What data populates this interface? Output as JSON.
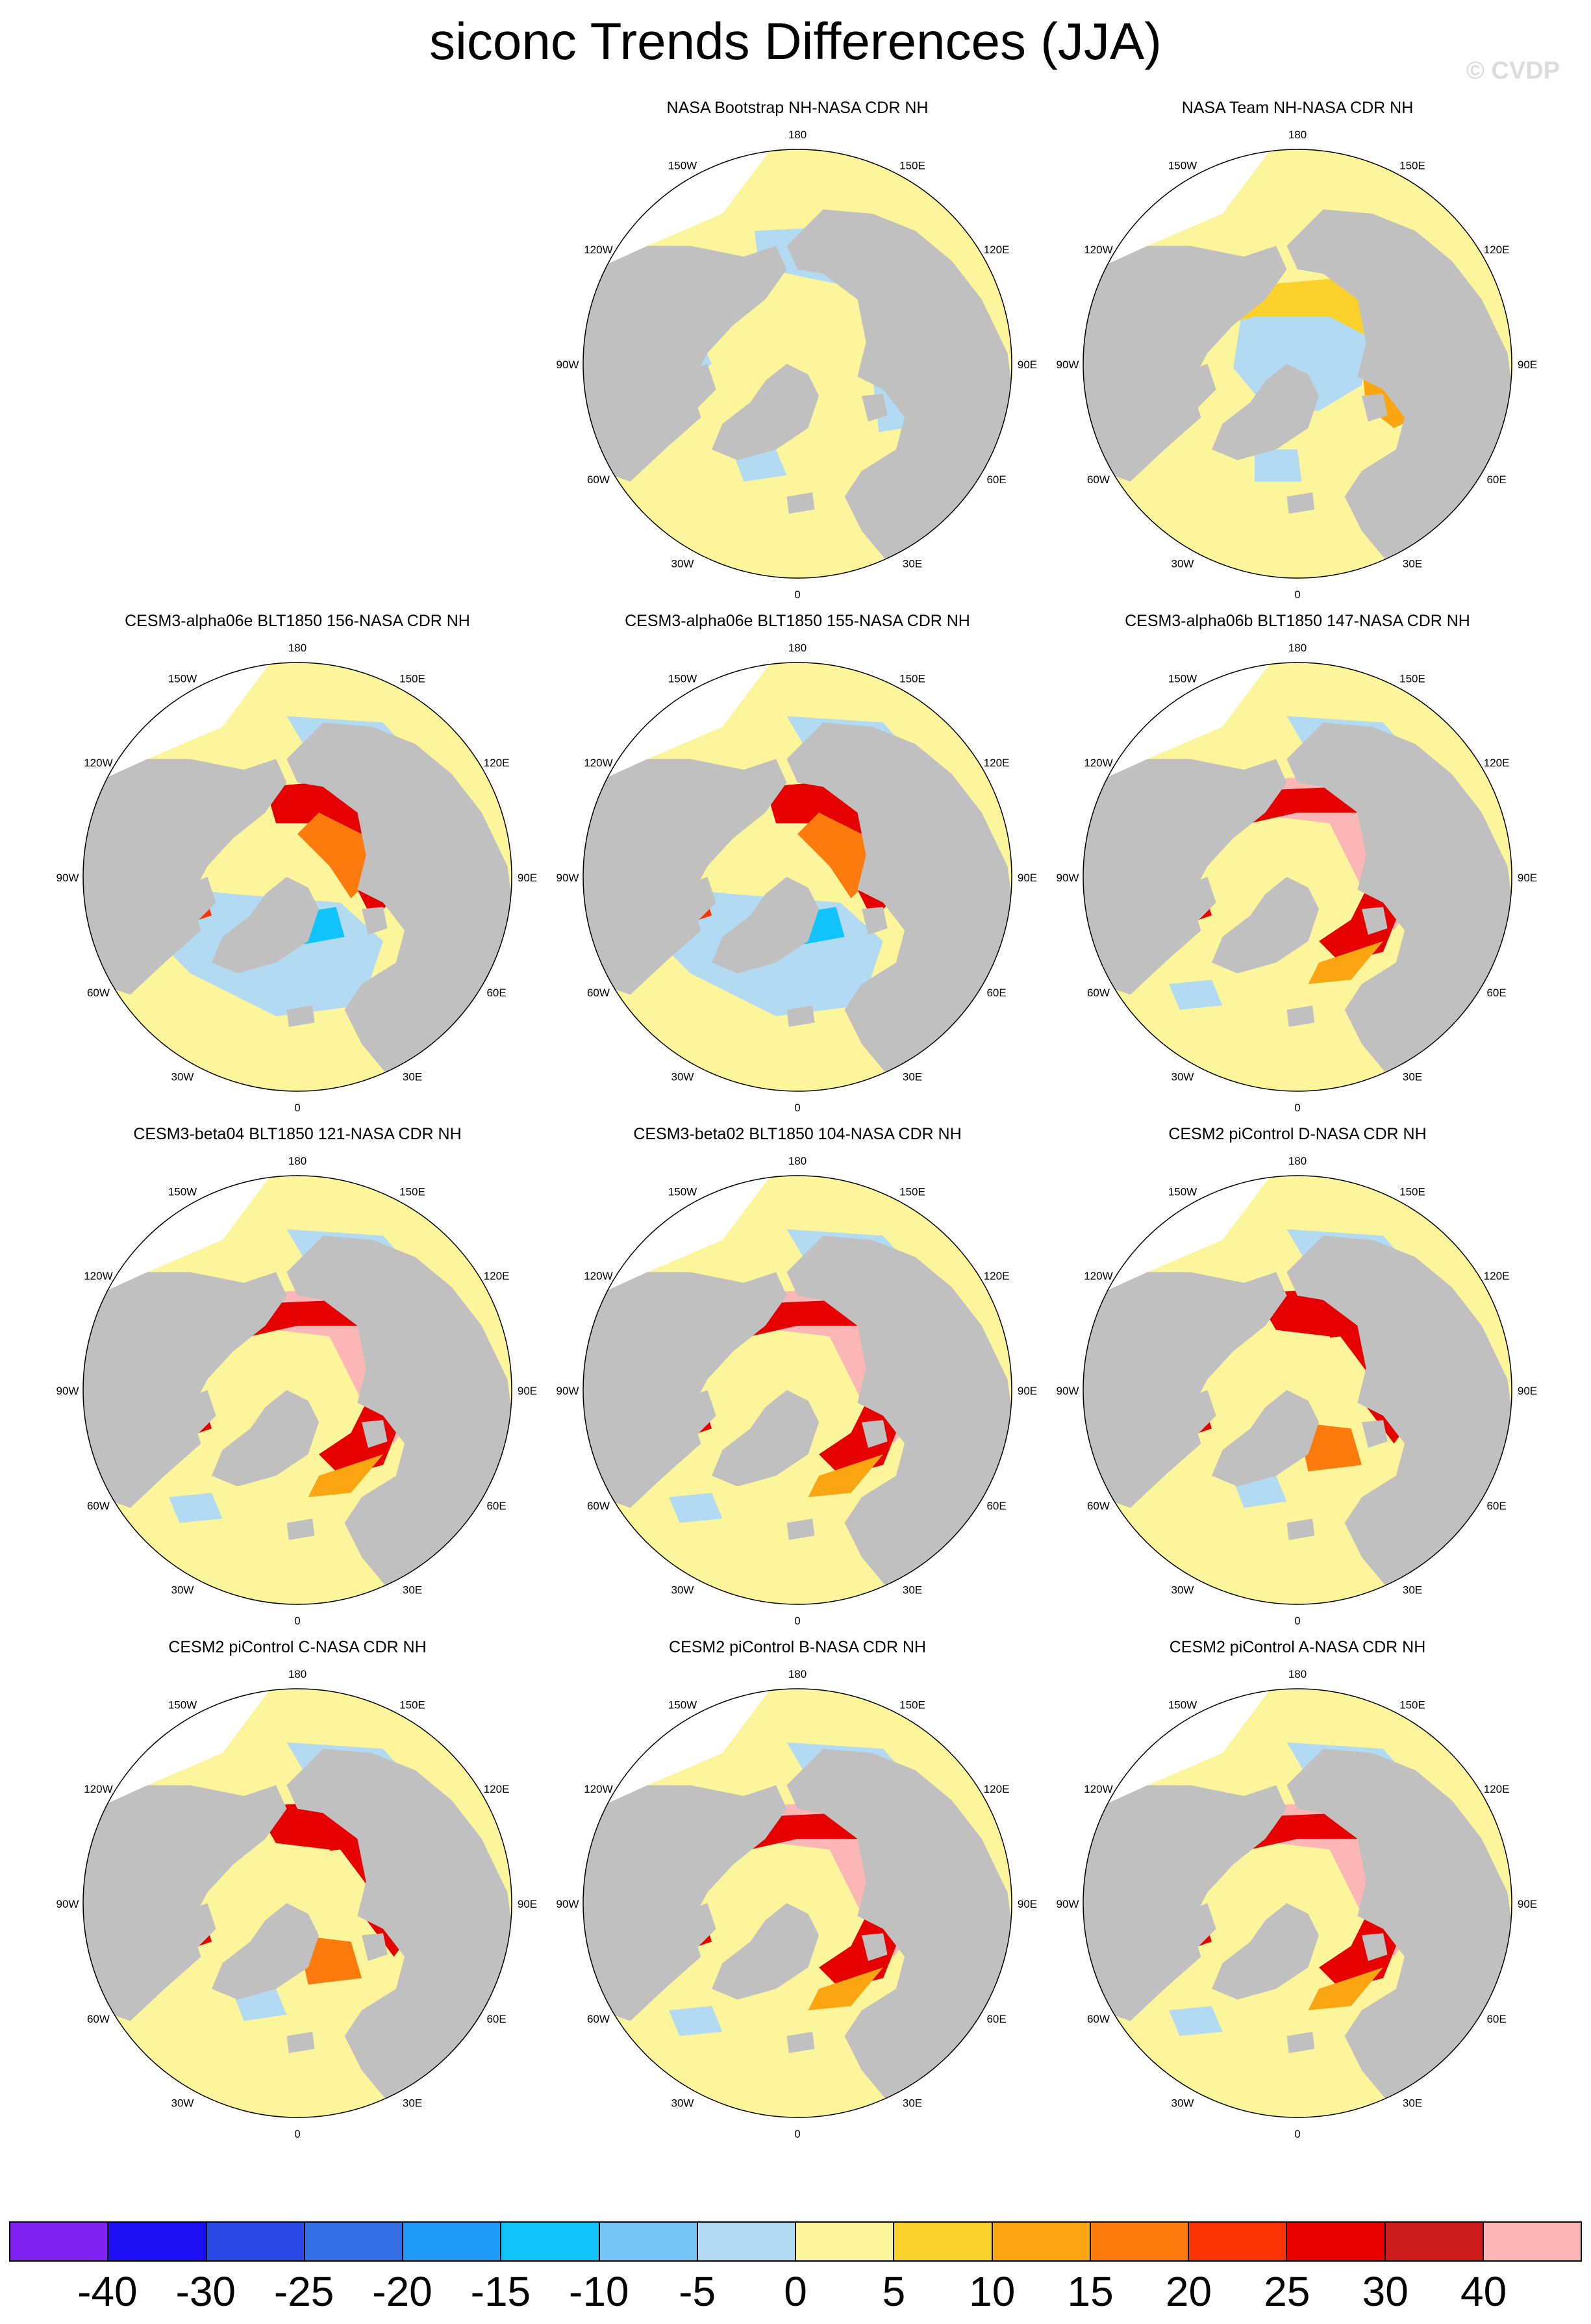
{
  "title": "siconc Trends Differences (JJA)",
  "watermark": "© CVDP",
  "lon_labels": [
    "180",
    "150E",
    "120E",
    "90E",
    "60E",
    "30E",
    "0",
    "30W",
    "60W",
    "90W",
    "120W",
    "150W"
  ],
  "colors": {
    "land": "#c0c0c0",
    "ocean_white": "#ffffff",
    "scale": [
      "#7f22f0",
      "#1d0ff4",
      "#2a49e4",
      "#3370e6",
      "#1f9bf7",
      "#10c3fb",
      "#74c4f5",
      "#b2dbf3",
      "#fdf59b",
      "#fbd12c",
      "#fca512",
      "#fc7b0c",
      "#fb3201",
      "#e60000",
      "#cd1c1c",
      "#fcb6b6"
    ]
  },
  "colorbar_labels": [
    "-40",
    "-30",
    "-25",
    "-20",
    "-15",
    "-10",
    "-5",
    "0",
    "5",
    "10",
    "15",
    "20",
    "25",
    "30",
    "40"
  ],
  "panels": [
    {
      "title": "NASA Bootstrap NH-NASA CDR NH",
      "style": "bootstrap"
    },
    {
      "title": "NASA Team NH-NASA CDR NH",
      "style": "team"
    },
    {
      "title": "CESM3-alpha06e BLT1850 156-NASA CDR NH",
      "style": "model_blue"
    },
    {
      "title": "CESM3-alpha06e BLT1850 155-NASA CDR NH",
      "style": "model_blue"
    },
    {
      "title": "CESM3-alpha06b BLT1850 147-NASA CDR NH",
      "style": "model_pink"
    },
    {
      "title": "CESM3-beta04 BLT1850 121-NASA CDR NH",
      "style": "model_pink"
    },
    {
      "title": "CESM3-beta02 BLT1850 104-NASA CDR NH",
      "style": "model_pink"
    },
    {
      "title": "CESM2 piControl D-NASA CDR NH",
      "style": "model_mixed"
    },
    {
      "title": "CESM2 piControl C-NASA CDR NH",
      "style": "model_mixed"
    },
    {
      "title": "CESM2 piControl B-NASA CDR NH",
      "style": "model_pink"
    },
    {
      "title": "CESM2 piControl A-NASA CDR NH",
      "style": "model_pink"
    }
  ]
}
